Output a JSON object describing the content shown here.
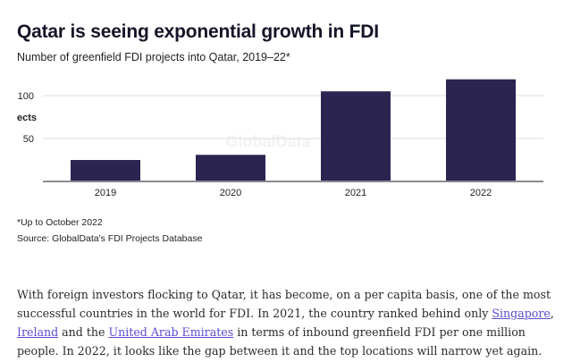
{
  "chart_data": {
    "type": "bar",
    "title": "Qatar is seeing exponential growth in FDI",
    "subtitle": "Number of greenfield FDI projects into Qatar, 2019–22*",
    "ylabel": "ects",
    "xlabel": "",
    "categories": [
      "2019",
      "2020",
      "2021",
      "2022"
    ],
    "values": [
      25,
      31,
      105,
      119
    ],
    "yticks": [
      50,
      100
    ],
    "ylim": [
      0,
      125
    ],
    "grid": true,
    "bar_color": "#2b2450",
    "watermark": "GlobalData"
  },
  "notes": {
    "footnote": "*Up to October 2022",
    "source": "Source: GlobalData's FDI Projects Database"
  },
  "article": {
    "p1": "With foreign investors flocking to Qatar, it has become, on a per capita basis, one of the most successful countries in the world for FDI. In 2021, the country ranked behind only ",
    "link1": "Singapore",
    "sep1": ", ",
    "link2": "Ireland",
    "sep2": " and the ",
    "link3": "United Arab Emirates",
    "p2": " in terms of inbound greenfield FDI per one million people. In 2022, it looks like the gap between it and the top locations will narrow yet again."
  }
}
